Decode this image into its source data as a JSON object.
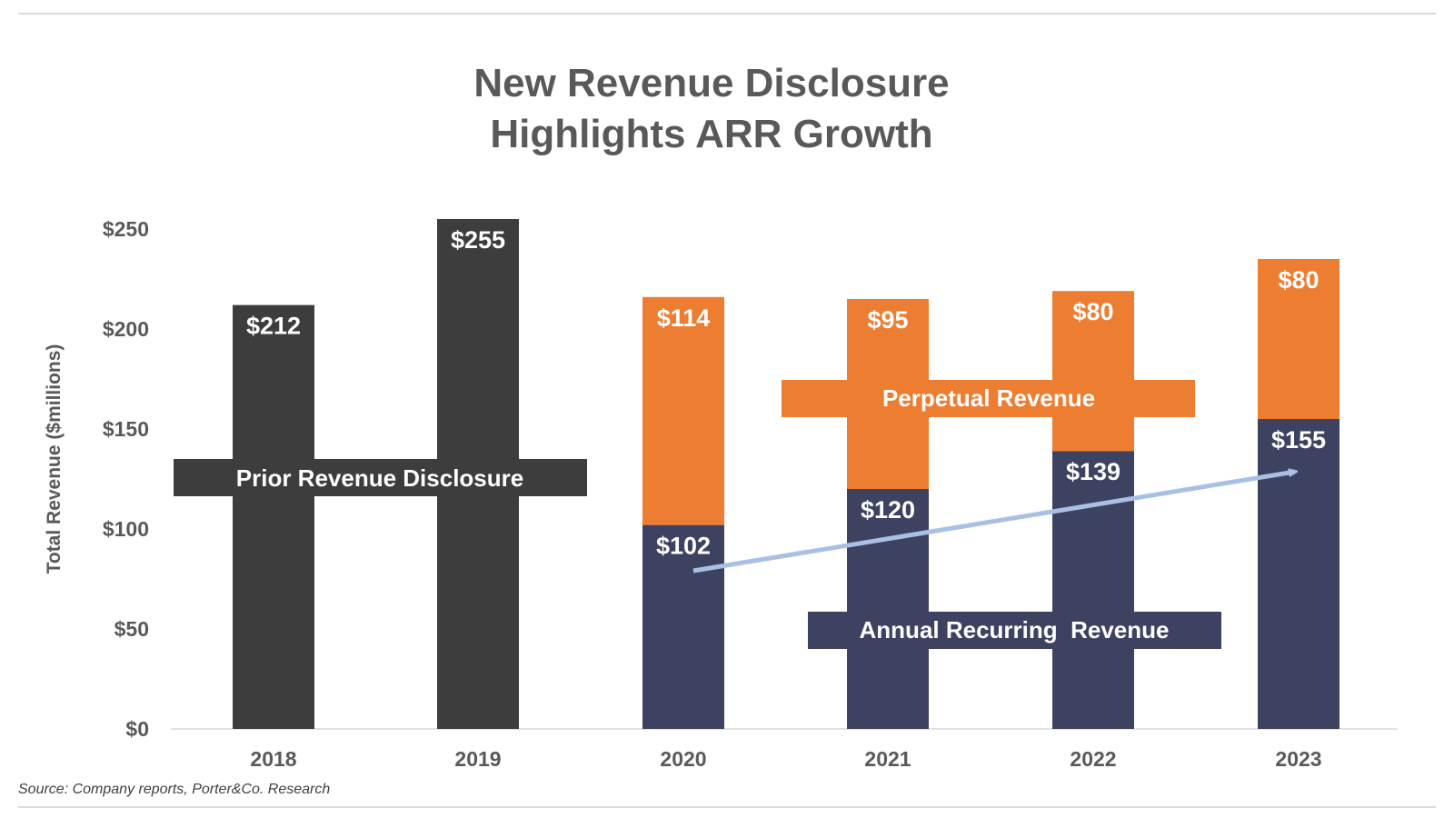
{
  "title_lines": [
    "New Revenue Disclosure",
    "Highlights ARR Growth"
  ],
  "source": "Source: Company reports, Porter&Co. Research",
  "colors": {
    "prior": "#3d3d3d",
    "arr": "#3d4261",
    "perpetual": "#ed7d31",
    "trend_arrow": "#a9c0e4",
    "text_gray": "#595959"
  },
  "callouts": {
    "prior": "Prior Revenue Disclosure",
    "perpetual": "Perpetual Revenue",
    "arr": "Annual Recurring  Revenue"
  },
  "chart_data": {
    "type": "bar",
    "stacked": true,
    "title": "New Revenue Disclosure Highlights ARR Growth",
    "ylabel": "Total Revenue ($millions)",
    "xlabel": "",
    "categories": [
      "2018",
      "2019",
      "2020",
      "2021",
      "2022",
      "2023"
    ],
    "ylim": [
      0,
      250
    ],
    "yticks": [
      0,
      50,
      100,
      150,
      200,
      250
    ],
    "ytick_labels": [
      "$0",
      "$50",
      "$100",
      "$150",
      "$200",
      "$250"
    ],
    "series": [
      {
        "key": "prior",
        "values": [
          212,
          255,
          null,
          null,
          null,
          null
        ],
        "labels": [
          "$212",
          "$255",
          null,
          null,
          null,
          null
        ]
      },
      {
        "key": "arr",
        "values": [
          null,
          null,
          102,
          120,
          139,
          155
        ],
        "labels": [
          null,
          null,
          "$102",
          "$120",
          "$139",
          "$155"
        ]
      },
      {
        "key": "perpetual",
        "values": [
          null,
          null,
          114,
          95,
          80,
          80
        ],
        "labels": [
          null,
          null,
          "$114",
          "$95",
          "$80",
          "$80"
        ]
      }
    ],
    "grid": false,
    "legend": "none"
  }
}
